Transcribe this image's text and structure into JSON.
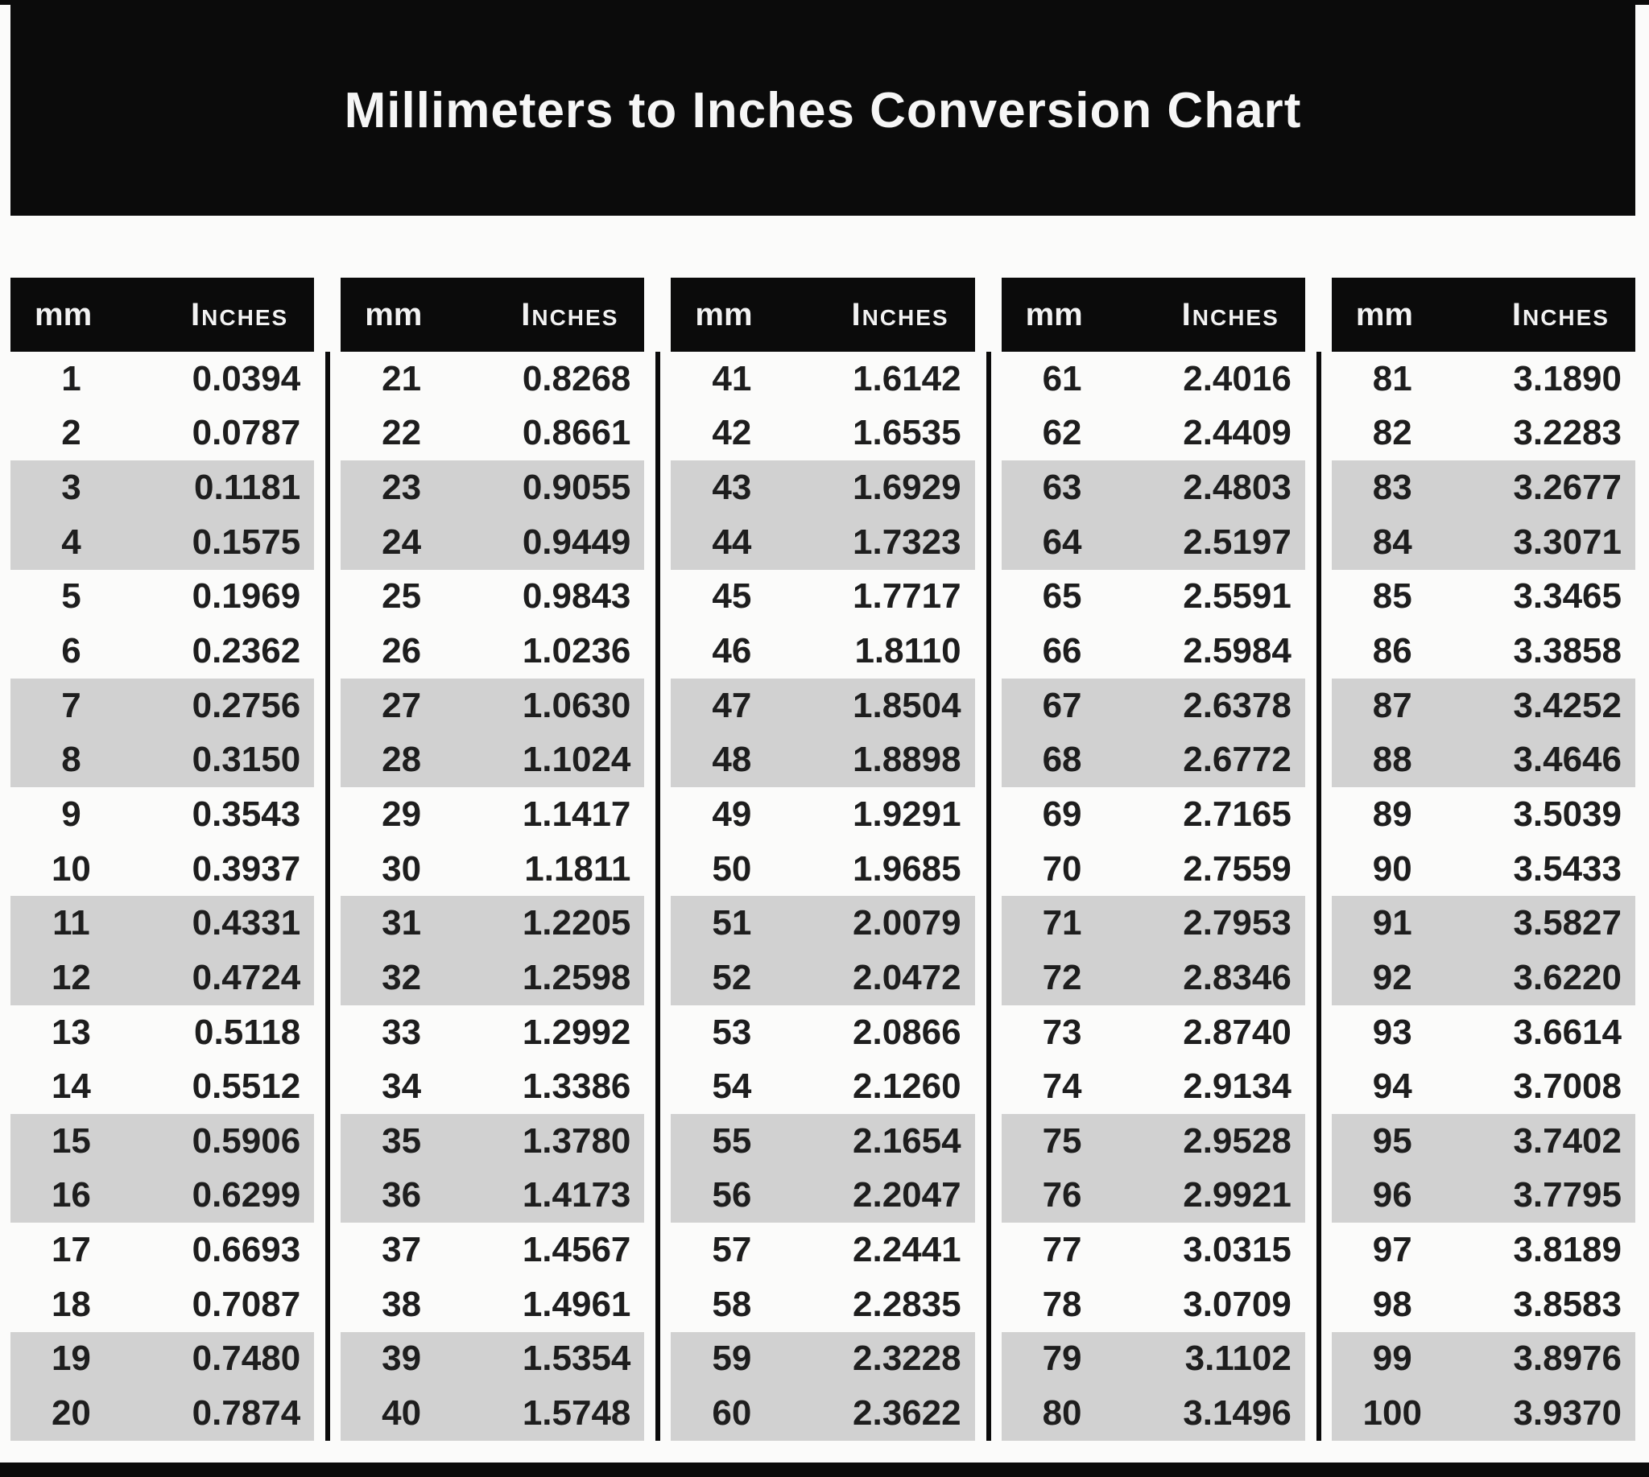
{
  "title": "Millimeters to Inches Conversion Chart",
  "column_headers": {
    "mm": "mm",
    "inches": "Inches"
  },
  "colors": {
    "bar": "#0b0b0b",
    "stripe": "#d1d1d1",
    "text": "#1e1e1e"
  },
  "table_columns": [
    {
      "rows": [
        {
          "mm": "1",
          "inches": "0.0394"
        },
        {
          "mm": "2",
          "inches": "0.0787"
        },
        {
          "mm": "3",
          "inches": "0.1181"
        },
        {
          "mm": "4",
          "inches": "0.1575"
        },
        {
          "mm": "5",
          "inches": "0.1969"
        },
        {
          "mm": "6",
          "inches": "0.2362"
        },
        {
          "mm": "7",
          "inches": "0.2756"
        },
        {
          "mm": "8",
          "inches": "0.3150"
        },
        {
          "mm": "9",
          "inches": "0.3543"
        },
        {
          "mm": "10",
          "inches": "0.3937"
        },
        {
          "mm": "11",
          "inches": "0.4331"
        },
        {
          "mm": "12",
          "inches": "0.4724"
        },
        {
          "mm": "13",
          "inches": "0.5118"
        },
        {
          "mm": "14",
          "inches": "0.5512"
        },
        {
          "mm": "15",
          "inches": "0.5906"
        },
        {
          "mm": "16",
          "inches": "0.6299"
        },
        {
          "mm": "17",
          "inches": "0.6693"
        },
        {
          "mm": "18",
          "inches": "0.7087"
        },
        {
          "mm": "19",
          "inches": "0.7480"
        },
        {
          "mm": "20",
          "inches": "0.7874"
        }
      ]
    },
    {
      "rows": [
        {
          "mm": "21",
          "inches": "0.8268"
        },
        {
          "mm": "22",
          "inches": "0.8661"
        },
        {
          "mm": "23",
          "inches": "0.9055"
        },
        {
          "mm": "24",
          "inches": "0.9449"
        },
        {
          "mm": "25",
          "inches": "0.9843"
        },
        {
          "mm": "26",
          "inches": "1.0236"
        },
        {
          "mm": "27",
          "inches": "1.0630"
        },
        {
          "mm": "28",
          "inches": "1.1024"
        },
        {
          "mm": "29",
          "inches": "1.1417"
        },
        {
          "mm": "30",
          "inches": "1.1811"
        },
        {
          "mm": "31",
          "inches": "1.2205"
        },
        {
          "mm": "32",
          "inches": "1.2598"
        },
        {
          "mm": "33",
          "inches": "1.2992"
        },
        {
          "mm": "34",
          "inches": "1.3386"
        },
        {
          "mm": "35",
          "inches": "1.3780"
        },
        {
          "mm": "36",
          "inches": "1.4173"
        },
        {
          "mm": "37",
          "inches": "1.4567"
        },
        {
          "mm": "38",
          "inches": "1.4961"
        },
        {
          "mm": "39",
          "inches": "1.5354"
        },
        {
          "mm": "40",
          "inches": "1.5748"
        }
      ]
    },
    {
      "rows": [
        {
          "mm": "41",
          "inches": "1.6142"
        },
        {
          "mm": "42",
          "inches": "1.6535"
        },
        {
          "mm": "43",
          "inches": "1.6929"
        },
        {
          "mm": "44",
          "inches": "1.7323"
        },
        {
          "mm": "45",
          "inches": "1.7717"
        },
        {
          "mm": "46",
          "inches": "1.8110"
        },
        {
          "mm": "47",
          "inches": "1.8504"
        },
        {
          "mm": "48",
          "inches": "1.8898"
        },
        {
          "mm": "49",
          "inches": "1.9291"
        },
        {
          "mm": "50",
          "inches": "1.9685"
        },
        {
          "mm": "51",
          "inches": "2.0079"
        },
        {
          "mm": "52",
          "inches": "2.0472"
        },
        {
          "mm": "53",
          "inches": "2.0866"
        },
        {
          "mm": "54",
          "inches": "2.1260"
        },
        {
          "mm": "55",
          "inches": "2.1654"
        },
        {
          "mm": "56",
          "inches": "2.2047"
        },
        {
          "mm": "57",
          "inches": "2.2441"
        },
        {
          "mm": "58",
          "inches": "2.2835"
        },
        {
          "mm": "59",
          "inches": "2.3228"
        },
        {
          "mm": "60",
          "inches": "2.3622"
        }
      ]
    },
    {
      "rows": [
        {
          "mm": "61",
          "inches": "2.4016"
        },
        {
          "mm": "62",
          "inches": "2.4409"
        },
        {
          "mm": "63",
          "inches": "2.4803"
        },
        {
          "mm": "64",
          "inches": "2.5197"
        },
        {
          "mm": "65",
          "inches": "2.5591"
        },
        {
          "mm": "66",
          "inches": "2.5984"
        },
        {
          "mm": "67",
          "inches": "2.6378"
        },
        {
          "mm": "68",
          "inches": "2.6772"
        },
        {
          "mm": "69",
          "inches": "2.7165"
        },
        {
          "mm": "70",
          "inches": "2.7559"
        },
        {
          "mm": "71",
          "inches": "2.7953"
        },
        {
          "mm": "72",
          "inches": "2.8346"
        },
        {
          "mm": "73",
          "inches": "2.8740"
        },
        {
          "mm": "74",
          "inches": "2.9134"
        },
        {
          "mm": "75",
          "inches": "2.9528"
        },
        {
          "mm": "76",
          "inches": "2.9921"
        },
        {
          "mm": "77",
          "inches": "3.0315"
        },
        {
          "mm": "78",
          "inches": "3.0709"
        },
        {
          "mm": "79",
          "inches": "3.1102"
        },
        {
          "mm": "80",
          "inches": "3.1496"
        }
      ]
    },
    {
      "rows": [
        {
          "mm": "81",
          "inches": "3.1890"
        },
        {
          "mm": "82",
          "inches": "3.2283"
        },
        {
          "mm": "83",
          "inches": "3.2677"
        },
        {
          "mm": "84",
          "inches": "3.3071"
        },
        {
          "mm": "85",
          "inches": "3.3465"
        },
        {
          "mm": "86",
          "inches": "3.3858"
        },
        {
          "mm": "87",
          "inches": "3.4252"
        },
        {
          "mm": "88",
          "inches": "3.4646"
        },
        {
          "mm": "89",
          "inches": "3.5039"
        },
        {
          "mm": "90",
          "inches": "3.5433"
        },
        {
          "mm": "91",
          "inches": "3.5827"
        },
        {
          "mm": "92",
          "inches": "3.6220"
        },
        {
          "mm": "93",
          "inches": "3.6614"
        },
        {
          "mm": "94",
          "inches": "3.7008"
        },
        {
          "mm": "95",
          "inches": "3.7402"
        },
        {
          "mm": "96",
          "inches": "3.7795"
        },
        {
          "mm": "97",
          "inches": "3.8189"
        },
        {
          "mm": "98",
          "inches": "3.8583"
        },
        {
          "mm": "99",
          "inches": "3.8976"
        },
        {
          "mm": "100",
          "inches": "3.9370"
        }
      ]
    }
  ]
}
